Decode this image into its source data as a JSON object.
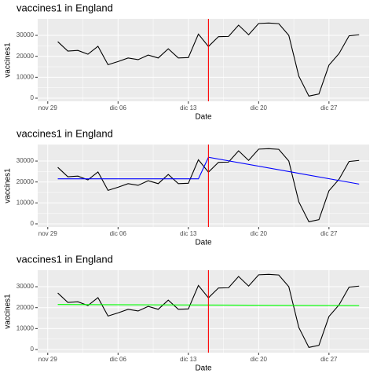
{
  "chart_data": [
    {
      "type": "line",
      "title": "vaccines1 in England",
      "xlabel": "Date",
      "ylabel": "vaccines1",
      "x": [
        "11-30",
        "12-01",
        "12-02",
        "12-03",
        "12-04",
        "12-05",
        "12-06",
        "12-07",
        "12-08",
        "12-09",
        "12-10",
        "12-11",
        "12-12",
        "12-13",
        "12-14",
        "12-15",
        "12-16",
        "12-17",
        "12-18",
        "12-19",
        "12-20",
        "12-21",
        "12-22",
        "12-23",
        "12-24",
        "12-25",
        "12-26",
        "12-27",
        "12-28",
        "12-29",
        "12-30"
      ],
      "series": [
        {
          "color": "#000000",
          "values": [
            27000,
            22500,
            22800,
            21000,
            24800,
            16000,
            17500,
            19200,
            18400,
            20600,
            19200,
            23600,
            19200,
            19400,
            30600,
            24700,
            29400,
            29500,
            34900,
            30300,
            35700,
            35900,
            35600,
            30000,
            10500,
            1000,
            2000,
            15800,
            21300,
            29800,
            30300
          ]
        }
      ],
      "vline": "12-15",
      "vline_color": "#ff0000",
      "xlim": [
        "11-28",
        "12-31"
      ],
      "xticks": [
        {
          "value": "11-29",
          "label": "nov 29"
        },
        {
          "value": "12-06",
          "label": "dic 06"
        },
        {
          "value": "12-13",
          "label": "dic 13"
        },
        {
          "value": "12-20",
          "label": "dic 20"
        },
        {
          "value": "12-27",
          "label": "dic 27"
        }
      ],
      "ylim": [
        -1500,
        37900
      ],
      "yticks": [
        0,
        10000,
        20000,
        30000
      ],
      "grid": true
    },
    {
      "type": "line",
      "title": "vaccines1 in England",
      "xlabel": "Date",
      "ylabel": "vaccines1",
      "x": [
        "11-30",
        "12-01",
        "12-02",
        "12-03",
        "12-04",
        "12-05",
        "12-06",
        "12-07",
        "12-08",
        "12-09",
        "12-10",
        "12-11",
        "12-12",
        "12-13",
        "12-14",
        "12-15",
        "12-16",
        "12-17",
        "12-18",
        "12-19",
        "12-20",
        "12-21",
        "12-22",
        "12-23",
        "12-24",
        "12-25",
        "12-26",
        "12-27",
        "12-28",
        "12-29",
        "12-30"
      ],
      "series": [
        {
          "color": "#000000",
          "values": [
            27000,
            22500,
            22800,
            21000,
            24800,
            16000,
            17500,
            19200,
            18400,
            20600,
            19200,
            23600,
            19200,
            19400,
            30600,
            24700,
            29400,
            29500,
            34900,
            30300,
            35700,
            35900,
            35600,
            30000,
            10500,
            1000,
            2000,
            15800,
            21300,
            29800,
            30300
          ]
        },
        {
          "color": "#0000ff",
          "x": [
            "11-30",
            "12-14",
            "12-15",
            "12-30"
          ],
          "values": [
            21500,
            21500,
            31800,
            19000
          ]
        }
      ],
      "vline": "12-15",
      "vline_color": "#ff0000",
      "xlim": [
        "11-28",
        "12-31"
      ],
      "xticks": [
        {
          "value": "11-29",
          "label": "nov 29"
        },
        {
          "value": "12-06",
          "label": "dic 06"
        },
        {
          "value": "12-13",
          "label": "dic 13"
        },
        {
          "value": "12-20",
          "label": "dic 20"
        },
        {
          "value": "12-27",
          "label": "dic 27"
        }
      ],
      "ylim": [
        -1500,
        37900
      ],
      "yticks": [
        0,
        10000,
        20000,
        30000
      ],
      "grid": true
    },
    {
      "type": "line",
      "title": "vaccines1 in England",
      "xlabel": "Date",
      "ylabel": "vaccines1",
      "x": [
        "11-30",
        "12-01",
        "12-02",
        "12-03",
        "12-04",
        "12-05",
        "12-06",
        "12-07",
        "12-08",
        "12-09",
        "12-10",
        "12-11",
        "12-12",
        "12-13",
        "12-14",
        "12-15",
        "12-16",
        "12-17",
        "12-18",
        "12-19",
        "12-20",
        "12-21",
        "12-22",
        "12-23",
        "12-24",
        "12-25",
        "12-26",
        "12-27",
        "12-28",
        "12-29",
        "12-30"
      ],
      "series": [
        {
          "color": "#000000",
          "values": [
            27000,
            22500,
            22800,
            21000,
            24800,
            16000,
            17500,
            19200,
            18400,
            20600,
            19200,
            23600,
            19200,
            19400,
            30600,
            24700,
            29400,
            29500,
            34900,
            30300,
            35700,
            35900,
            35600,
            30000,
            10500,
            1000,
            2000,
            15800,
            21300,
            29800,
            30300
          ]
        },
        {
          "color": "#00ff00",
          "x": [
            "11-30",
            "12-30"
          ],
          "values": [
            21500,
            21000
          ]
        }
      ],
      "vline": "12-15",
      "vline_color": "#ff0000",
      "xlim": [
        "11-28",
        "12-31"
      ],
      "xticks": [
        {
          "value": "11-29",
          "label": "nov 29"
        },
        {
          "value": "12-06",
          "label": "dic 06"
        },
        {
          "value": "12-13",
          "label": "dic 13"
        },
        {
          "value": "12-20",
          "label": "dic 20"
        },
        {
          "value": "12-27",
          "label": "dic 27"
        }
      ],
      "ylim": [
        -1500,
        37900
      ],
      "yticks": [
        0,
        10000,
        20000,
        30000
      ],
      "grid": true
    }
  ]
}
